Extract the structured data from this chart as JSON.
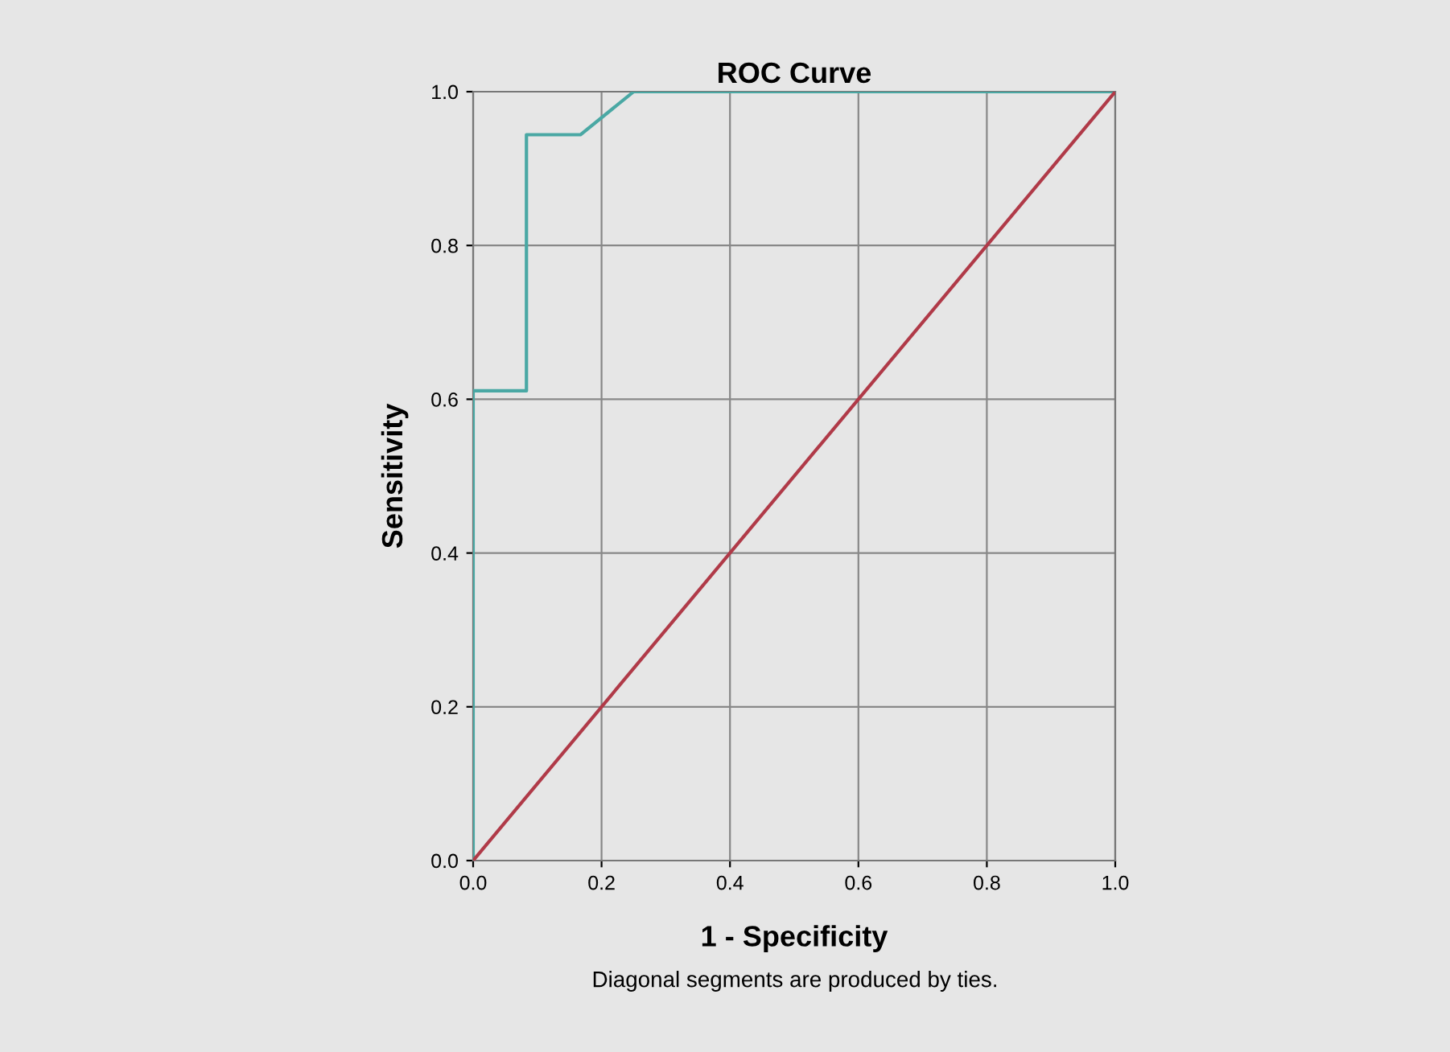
{
  "chart_data": {
    "type": "line",
    "title": "ROC Curve",
    "xlabel": "1 - Specificity",
    "ylabel": "Sensitivity",
    "series": [
      {
        "x": [
          0,
          0,
          0.083,
          0.083,
          0.167,
          0.25,
          1
        ],
        "values": [
          0,
          0.611,
          0.611,
          0.944,
          0.944,
          1,
          1
        ],
        "color": "#4aa8a4"
      },
      {
        "x": [
          0,
          1
        ],
        "values": [
          0,
          1
        ],
        "color": "#b03a48"
      }
    ],
    "xlim": [
      0,
      1
    ],
    "ylim": [
      0,
      1
    ],
    "xticks": [
      {
        "value": 0,
        "label": "0.0"
      },
      {
        "value": 0.2,
        "label": "0.2"
      },
      {
        "value": 0.4,
        "label": "0.4"
      },
      {
        "value": 0.6,
        "label": "0.6"
      },
      {
        "value": 0.8,
        "label": "0.8"
      },
      {
        "value": 1,
        "label": "1.0"
      }
    ],
    "yticks": [
      {
        "value": 0,
        "label": "0.0"
      },
      {
        "value": 0.2,
        "label": "0.2"
      },
      {
        "value": 0.4,
        "label": "0.4"
      },
      {
        "value": 0.6,
        "label": "0.6"
      },
      {
        "value": 0.8,
        "label": "0.8"
      },
      {
        "value": 1,
        "label": "1.0"
      }
    ],
    "grid": true,
    "annotations": [
      "Diagonal segments are produced by ties."
    ]
  }
}
